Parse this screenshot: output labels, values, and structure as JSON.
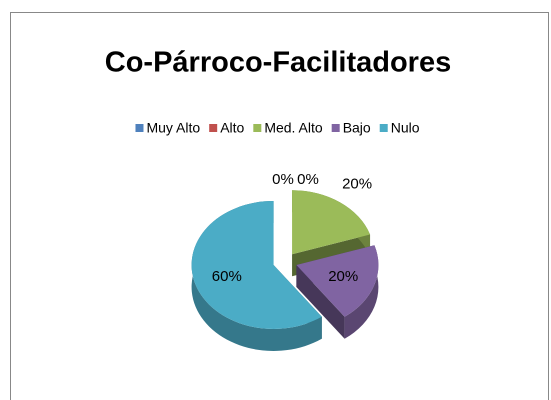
{
  "chart_data": {
    "type": "pie",
    "title": "Co-Párroco-Facilitadores",
    "categories": [
      "Muy Alto",
      "Alto",
      "Med. Alto",
      "Bajo",
      "Nulo"
    ],
    "values": [
      0,
      0,
      20,
      20,
      60
    ],
    "value_labels": [
      "0%",
      "0%",
      "20%",
      "20%",
      "60%"
    ],
    "colors": [
      "#4f81bd",
      "#c0504d",
      "#9bbb59",
      "#8064a2",
      "#4bacc6"
    ],
    "legend": "top"
  }
}
